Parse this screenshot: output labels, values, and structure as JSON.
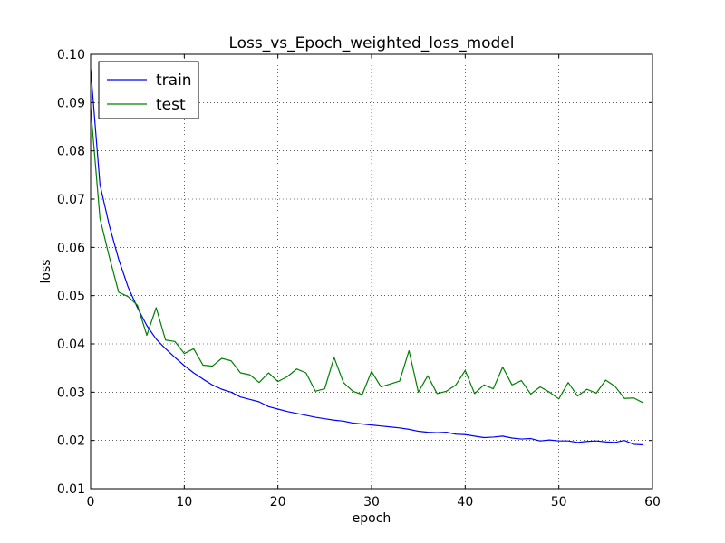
{
  "chart_data": {
    "type": "line",
    "title": "Loss_vs_Epoch_weighted_loss_model",
    "xlabel": "epoch",
    "ylabel": "loss",
    "xlim": [
      0,
      60
    ],
    "ylim": [
      0.01,
      0.1
    ],
    "xticks": [
      0,
      10,
      20,
      30,
      40,
      50,
      60
    ],
    "yticks": [
      0.01,
      0.02,
      0.03,
      0.04,
      0.05,
      0.06,
      0.07,
      0.08,
      0.09,
      0.1
    ],
    "xtick_labels": [
      "0",
      "10",
      "20",
      "30",
      "40",
      "50",
      "60"
    ],
    "ytick_labels": [
      "0.01",
      "0.02",
      "0.03",
      "0.04",
      "0.05",
      "0.06",
      "0.07",
      "0.08",
      "0.09",
      "0.10"
    ],
    "grid": true,
    "legend_position": "top-left",
    "x": [
      0,
      1,
      2,
      3,
      4,
      5,
      6,
      7,
      8,
      9,
      10,
      11,
      12,
      13,
      14,
      15,
      16,
      17,
      18,
      19,
      20,
      21,
      22,
      23,
      24,
      25,
      26,
      27,
      28,
      29,
      30,
      31,
      32,
      33,
      34,
      35,
      36,
      37,
      38,
      39,
      40,
      41,
      42,
      43,
      44,
      45,
      46,
      47,
      48,
      49,
      50,
      51,
      52,
      53,
      54,
      55,
      56,
      57,
      58,
      59
    ],
    "series": [
      {
        "name": "train",
        "color": "#0000ff",
        "values": [
          0.097,
          0.073,
          0.0645,
          0.0575,
          0.0518,
          0.0475,
          0.0438,
          0.041,
          0.039,
          0.0372,
          0.0355,
          0.034,
          0.0327,
          0.0315,
          0.0306,
          0.03,
          0.029,
          0.0285,
          0.028,
          0.027,
          0.0265,
          0.026,
          0.0256,
          0.0252,
          0.0248,
          0.0245,
          0.0242,
          0.024,
          0.0236,
          0.0234,
          0.0232,
          0.023,
          0.0228,
          0.0226,
          0.0223,
          0.0219,
          0.0217,
          0.0216,
          0.0217,
          0.0213,
          0.0212,
          0.0209,
          0.0206,
          0.0207,
          0.0209,
          0.0205,
          0.0203,
          0.0204,
          0.0199,
          0.0201,
          0.0199,
          0.0199,
          0.0196,
          0.0198,
          0.0199,
          0.0197,
          0.0196,
          0.02,
          0.0192,
          0.0191
        ]
      },
      {
        "name": "test",
        "color": "#008000",
        "values": [
          0.089,
          0.066,
          0.058,
          0.0507,
          0.0498,
          0.048,
          0.0418,
          0.0475,
          0.0408,
          0.0405,
          0.038,
          0.039,
          0.0356,
          0.0354,
          0.037,
          0.0365,
          0.034,
          0.0336,
          0.032,
          0.034,
          0.0322,
          0.0332,
          0.0348,
          0.034,
          0.0302,
          0.0307,
          0.0372,
          0.032,
          0.0302,
          0.0295,
          0.0343,
          0.0311,
          0.0317,
          0.0323,
          0.0386,
          0.03,
          0.0334,
          0.0297,
          0.0302,
          0.0315,
          0.0345,
          0.0297,
          0.0315,
          0.0307,
          0.0352,
          0.0315,
          0.0324,
          0.0296,
          0.0311,
          0.03,
          0.0286,
          0.032,
          0.0292,
          0.0306,
          0.0298,
          0.0325,
          0.0312,
          0.0287,
          0.0288,
          0.0278
        ]
      }
    ]
  }
}
